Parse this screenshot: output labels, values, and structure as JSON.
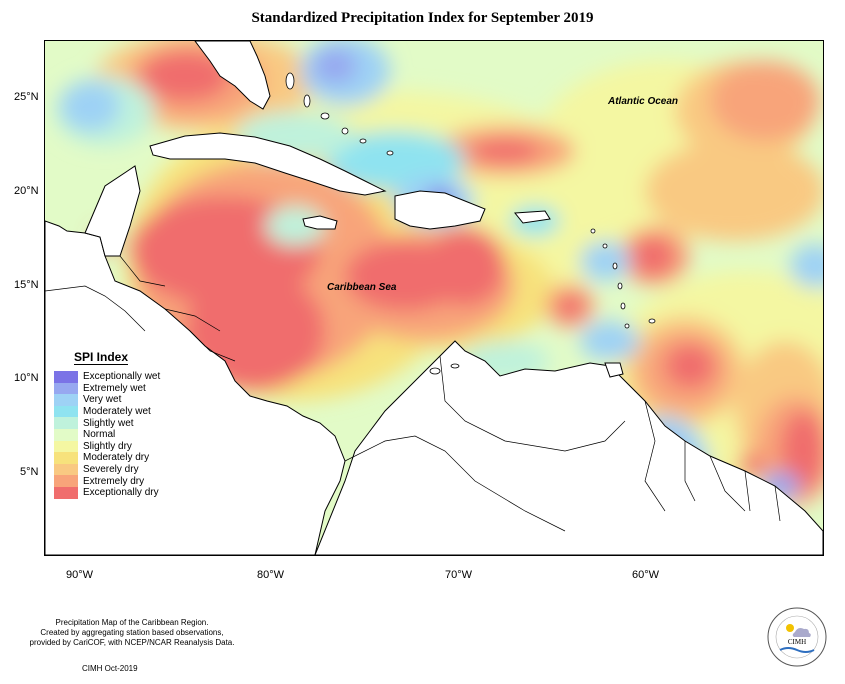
{
  "title": "Standardized Precipitation Index for September 2019",
  "map": {
    "latitude_labels": [
      "25°N",
      "20°N",
      "15°N",
      "10°N",
      "5°N"
    ],
    "longitude_labels": [
      "90°W",
      "80°W",
      "70°W",
      "60°W"
    ],
    "places": {
      "atlantic": "Atlantic Ocean",
      "caribbean": "Caribbean Sea"
    }
  },
  "legend": {
    "title": "SPI Index",
    "items": [
      {
        "label": "Exceptionally wet",
        "color": "#7b73e6"
      },
      {
        "label": "Extremely wet",
        "color": "#97a8f0"
      },
      {
        "label": "Very wet",
        "color": "#9ed2f5"
      },
      {
        "label": "Moderately wet",
        "color": "#8fe3f0"
      },
      {
        "label": "Slightly wet",
        "color": "#bff2dc"
      },
      {
        "label": "Normal",
        "color": "#e2fbc7"
      },
      {
        "label": "Slightly dry",
        "color": "#f4f7a2"
      },
      {
        "label": "Moderately dry",
        "color": "#f7e27c"
      },
      {
        "label": "Severely dry",
        "color": "#f9c982"
      },
      {
        "label": "Extremely dry",
        "color": "#f8a47a"
      },
      {
        "label": "Exceptionally dry",
        "color": "#f06d6d"
      }
    ]
  },
  "footer": {
    "line1": "Precipitation Map of the Caribbean Region.",
    "line2": "Created by aggregating station based observations,",
    "line3": "provided by CariCOF, with NCEP/NCAR Reanalysis Data.",
    "credit": "CIMH Oct-2019"
  },
  "logo": {
    "text": "CIMH"
  }
}
